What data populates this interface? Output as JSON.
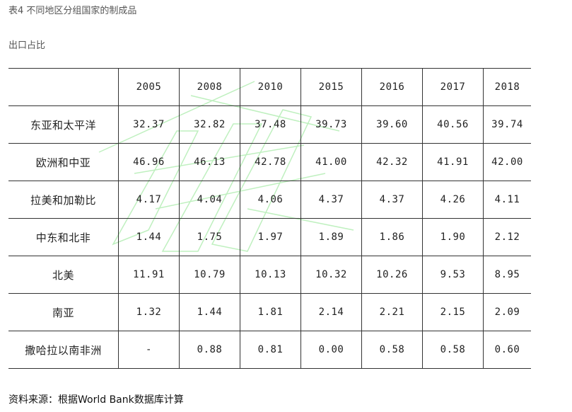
{
  "document": {
    "title": "表4 不同地区分组国家的制成品",
    "subtitle": "出口占比",
    "source": "资料来源：根据World Bank数据库计算"
  },
  "table": {
    "corner": "",
    "years": [
      "2005",
      "2008",
      "2010",
      "2015",
      "2016",
      "2017",
      "2018"
    ],
    "rows": [
      {
        "region": "东亚和太平洋",
        "values": [
          "32.37",
          "32.82",
          "37.48",
          "39.73",
          "39.60",
          "40.56",
          "39.74"
        ]
      },
      {
        "region": "欧洲和中亚",
        "values": [
          "46.96",
          "46.13",
          "42.78",
          "41.00",
          "42.32",
          "41.91",
          "42.00"
        ]
      },
      {
        "region": "拉美和加勒比",
        "values": [
          "4.17",
          "4.04",
          "4.06",
          "4.37",
          "4.37",
          "4.26",
          "4.11"
        ]
      },
      {
        "region": "中东和北非",
        "values": [
          "1.44",
          "1.75",
          "1.97",
          "1.89",
          "1.86",
          "1.90",
          "2.12"
        ]
      },
      {
        "region": "北美",
        "values": [
          "11.91",
          "10.79",
          "10.13",
          "10.32",
          "10.26",
          "9.53",
          "8.95"
        ]
      },
      {
        "region": "南亚",
        "values": [
          "1.32",
          "1.44",
          "1.81",
          "2.14",
          "2.21",
          "2.15",
          "2.09"
        ]
      },
      {
        "region": "撒哈拉以南非洲",
        "values": [
          "-",
          "0.88",
          "0.81",
          "0.00",
          "0.58",
          "0.58",
          "0.60"
        ]
      }
    ]
  },
  "colors": {
    "watermark": "#bff0bf",
    "rule": "#333333",
    "caption": "#555555"
  }
}
